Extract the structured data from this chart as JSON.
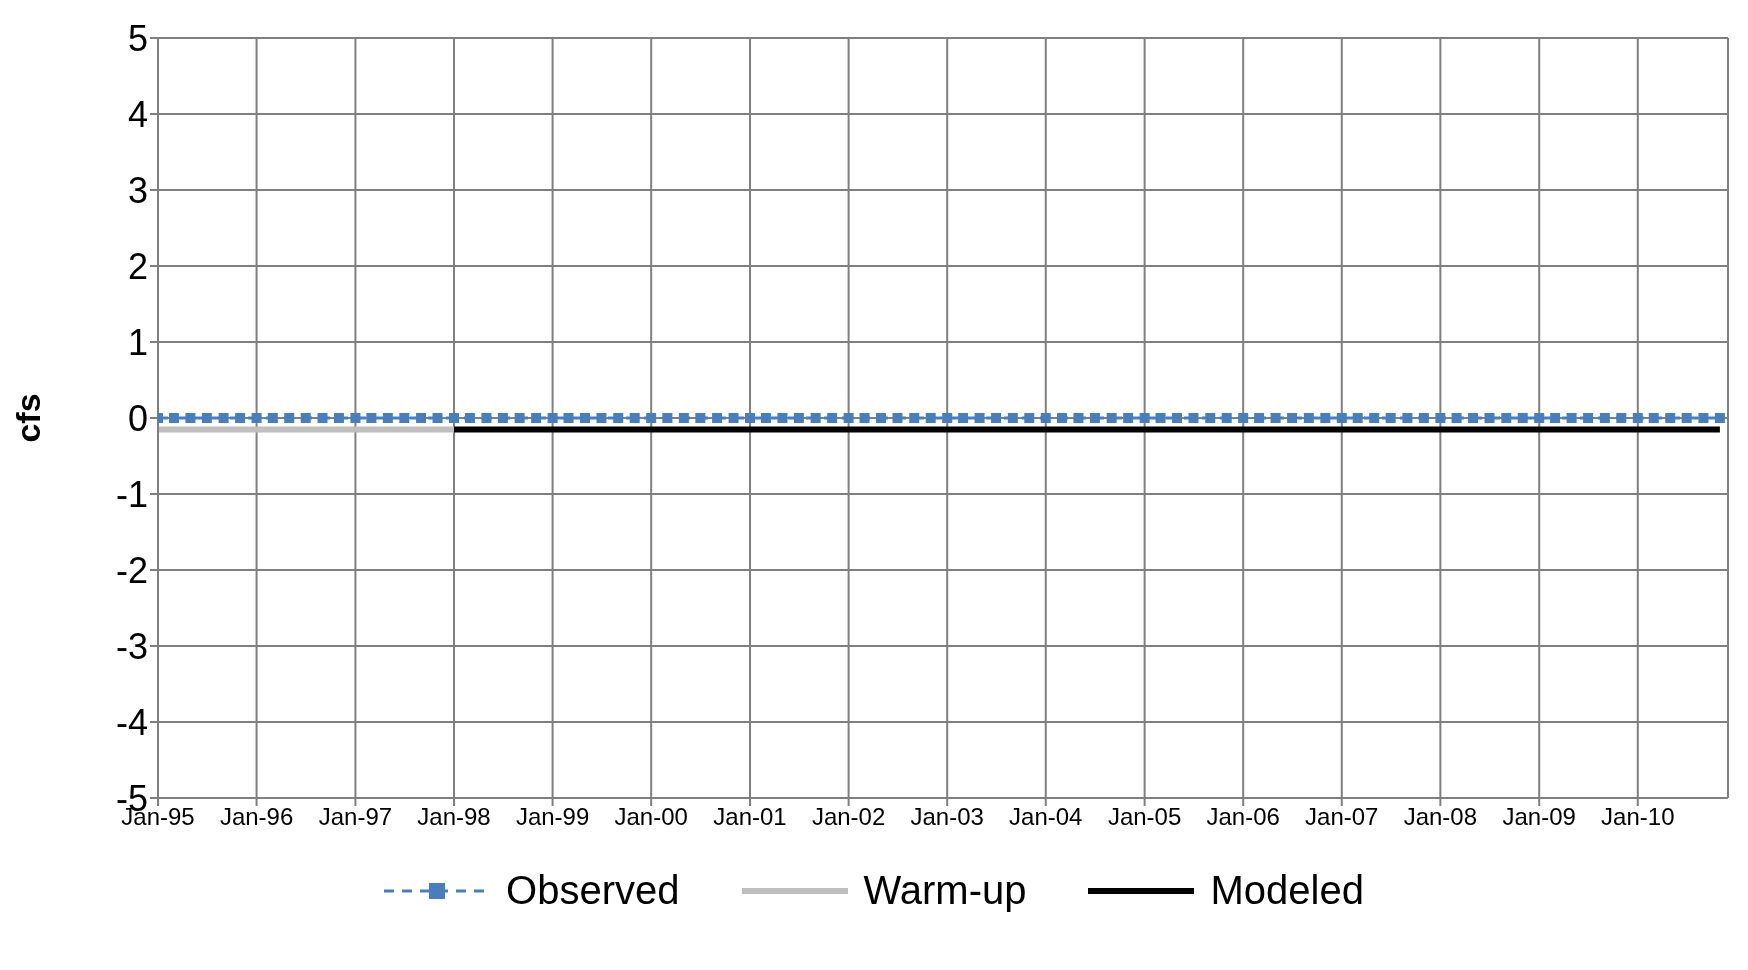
{
  "chart_data": {
    "type": "line",
    "ylabel": "cfs",
    "ylim": [
      -5,
      5
    ],
    "yticks": [
      -5,
      -4,
      -3,
      -2,
      -1,
      0,
      1,
      2,
      3,
      4,
      5
    ],
    "xlim": [
      "1995-01",
      "2010-12"
    ],
    "xticks": [
      {
        "value": "1995-01",
        "label": "Jan-95"
      },
      {
        "value": "1996-01",
        "label": "Jan-96"
      },
      {
        "value": "1997-01",
        "label": "Jan-97"
      },
      {
        "value": "1998-01",
        "label": "Jan-98"
      },
      {
        "value": "1999-01",
        "label": "Jan-99"
      },
      {
        "value": "2000-01",
        "label": "Jan-00"
      },
      {
        "value": "2001-01",
        "label": "Jan-01"
      },
      {
        "value": "2002-01",
        "label": "Jan-02"
      },
      {
        "value": "2003-01",
        "label": "Jan-03"
      },
      {
        "value": "2004-01",
        "label": "Jan-04"
      },
      {
        "value": "2005-01",
        "label": "Jan-05"
      },
      {
        "value": "2006-01",
        "label": "Jan-06"
      },
      {
        "value": "2007-01",
        "label": "Jan-07"
      },
      {
        "value": "2008-01",
        "label": "Jan-08"
      },
      {
        "value": "2009-01",
        "label": "Jan-09"
      },
      {
        "value": "2010-01",
        "label": "Jan-10"
      }
    ],
    "grid": true,
    "legend": "bottom",
    "series": [
      {
        "name": "Observed",
        "color": "#4a7ebb",
        "marker": "square",
        "line_style": "dashed",
        "x": [
          "1995-01",
          "1995-03",
          "1995-05",
          "1995-07",
          "1995-09",
          "1995-11",
          "1996-01",
          "1996-03",
          "1996-05",
          "1996-07",
          "1996-09",
          "1996-11",
          "1997-01",
          "1997-03",
          "1997-05",
          "1997-07",
          "1997-09",
          "1997-11",
          "1998-01",
          "1998-03",
          "1998-05",
          "1998-07",
          "1998-09",
          "1998-11",
          "1999-01",
          "1999-03",
          "1999-05",
          "1999-07",
          "1999-09",
          "1999-11",
          "2000-01",
          "2000-03",
          "2000-05",
          "2000-07",
          "2000-09",
          "2000-11",
          "2001-01",
          "2001-03",
          "2001-05",
          "2001-07",
          "2001-09",
          "2001-11",
          "2002-01",
          "2002-03",
          "2002-05",
          "2002-07",
          "2002-09",
          "2002-11",
          "2003-01",
          "2003-03",
          "2003-05",
          "2003-07",
          "2003-09",
          "2003-11",
          "2004-01",
          "2004-03",
          "2004-05",
          "2004-07",
          "2004-09",
          "2004-11",
          "2005-01",
          "2005-03",
          "2005-05",
          "2005-07",
          "2005-09",
          "2005-11",
          "2006-01",
          "2006-03",
          "2006-05",
          "2006-07",
          "2006-09",
          "2006-11",
          "2007-01",
          "2007-03",
          "2007-05",
          "2007-07",
          "2007-09",
          "2007-11",
          "2008-01",
          "2008-03",
          "2008-05",
          "2008-07",
          "2008-09",
          "2008-11",
          "2009-01",
          "2009-03",
          "2009-05",
          "2009-07",
          "2009-09",
          "2009-11",
          "2010-01",
          "2010-03",
          "2010-05",
          "2010-07",
          "2010-09",
          "2010-11"
        ],
        "values": [
          0,
          0,
          0,
          0,
          0,
          0,
          0,
          0,
          0,
          0,
          0,
          0,
          0,
          0,
          0,
          0,
          0,
          0,
          0,
          0,
          0,
          0,
          0,
          0,
          0,
          0,
          0,
          0,
          0,
          0,
          0,
          0,
          0,
          0,
          0,
          0,
          0,
          0,
          0,
          0,
          0,
          0,
          0,
          0,
          0,
          0,
          0,
          0,
          0,
          0,
          0,
          0,
          0,
          0,
          0,
          0,
          0,
          0,
          0,
          0,
          0,
          0,
          0,
          0,
          0,
          0,
          0,
          0,
          0,
          0,
          0,
          0,
          0,
          0,
          0,
          0,
          0,
          0,
          0,
          0,
          0,
          0,
          0,
          0,
          0,
          0,
          0,
          0,
          0,
          0,
          0,
          0,
          0,
          0,
          0,
          0
        ]
      },
      {
        "name": "Warm-up",
        "color": "#bfbfbf",
        "marker": "none",
        "line_style": "solid",
        "x": [
          "1995-01",
          "1998-01"
        ],
        "values": [
          -0.15,
          -0.15
        ]
      },
      {
        "name": "Modeled",
        "color": "#000000",
        "marker": "none",
        "line_style": "solid",
        "x": [
          "1998-01",
          "2010-11"
        ],
        "values": [
          -0.15,
          -0.15
        ]
      }
    ]
  }
}
